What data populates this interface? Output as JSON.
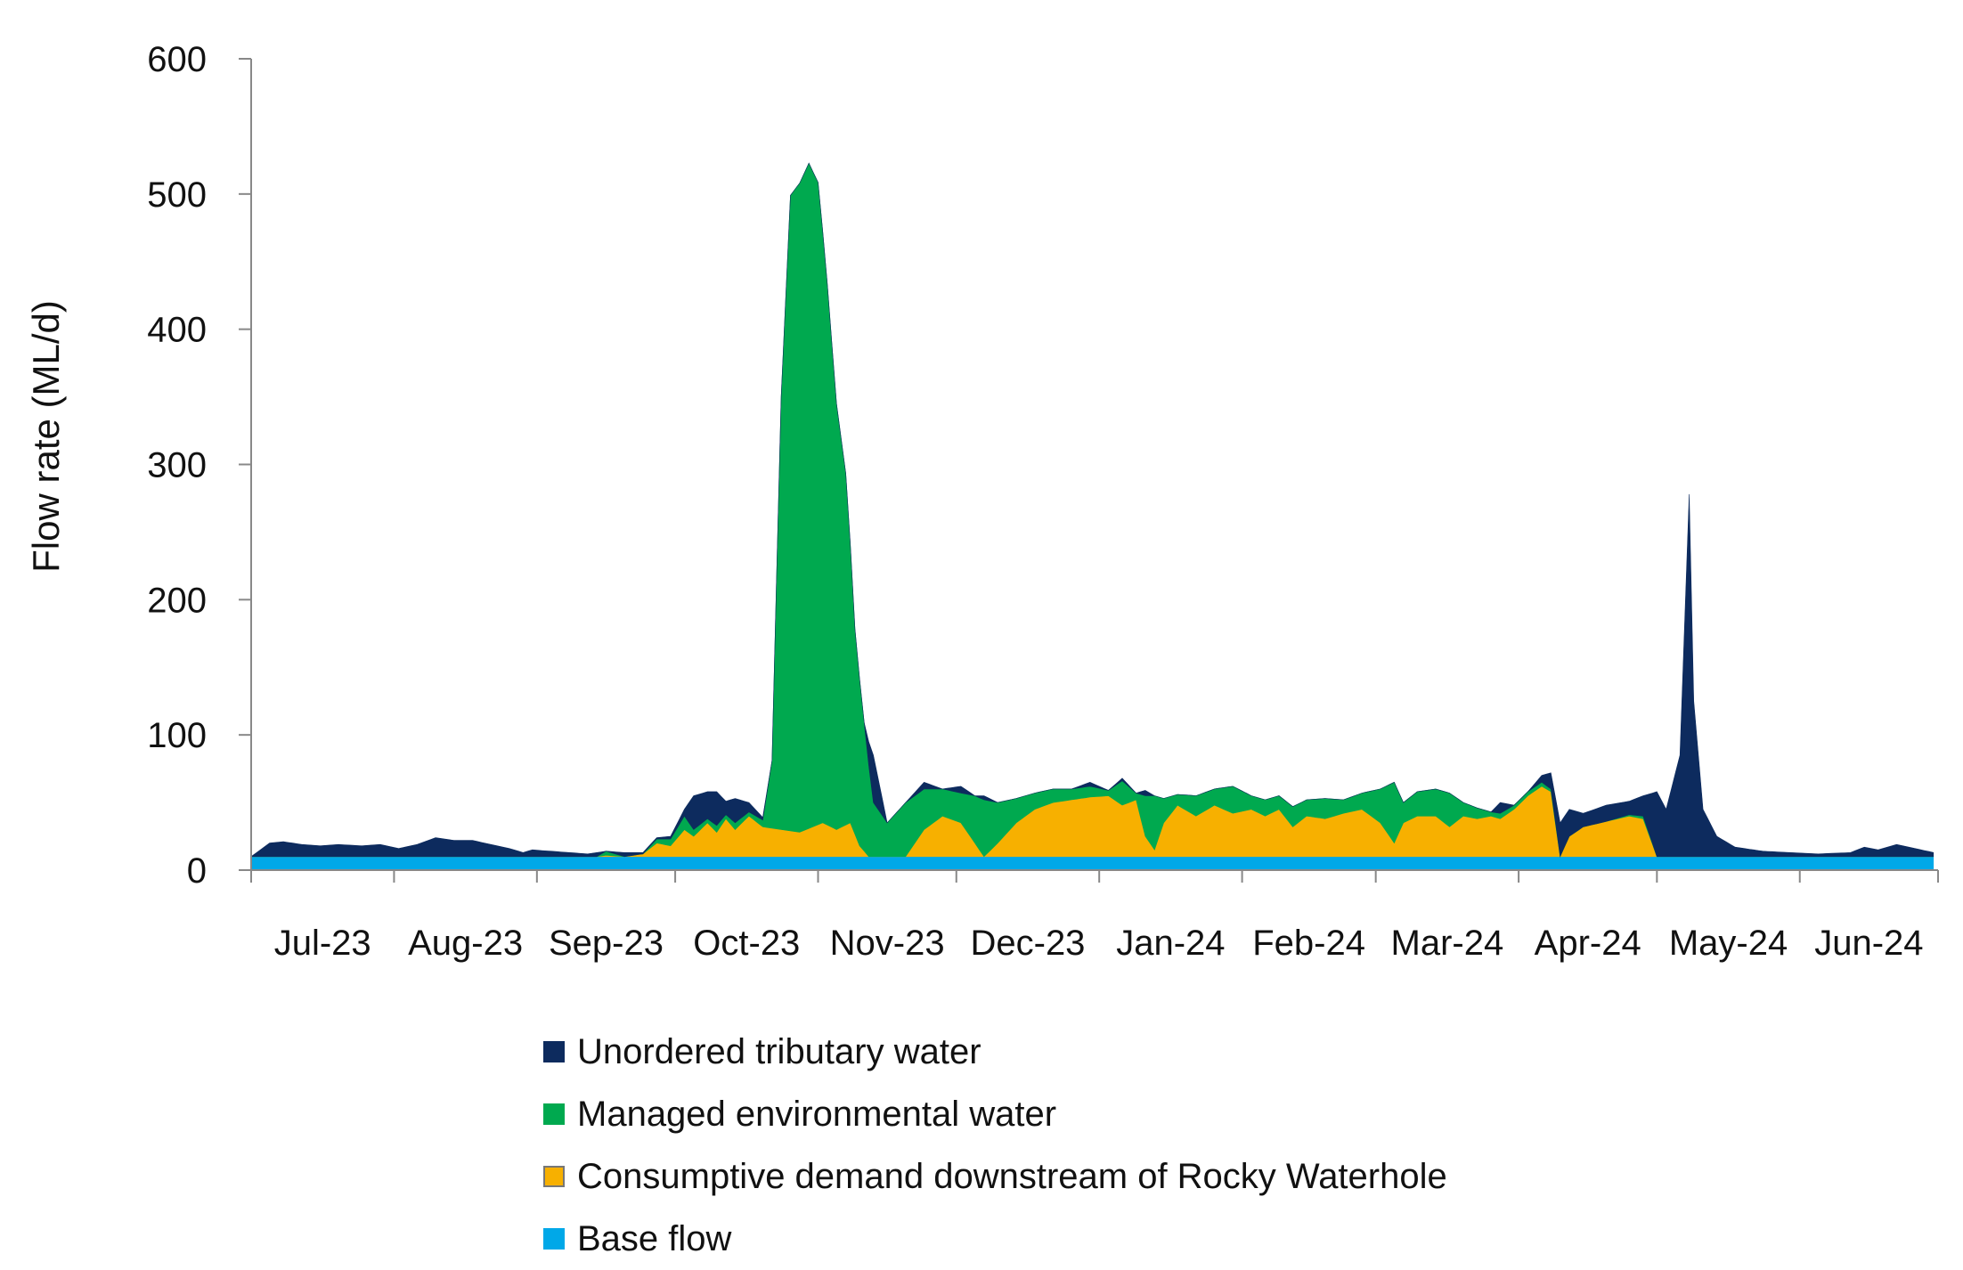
{
  "chart_data": {
    "type": "area",
    "stacked": true,
    "title": "",
    "ylabel": "Flow rate (ML/d)",
    "xlabel": "",
    "ylim": [
      0,
      600
    ],
    "yticks": [
      "0",
      "100",
      "200",
      "300",
      "400",
      "500",
      "600"
    ],
    "grid": false,
    "legend_position": "bottom",
    "x_start": "2023-07-01",
    "x_end": "2024-06-30",
    "x_tick_labels": [
      "Jul-23",
      "Aug-23",
      "Sep-23",
      "Oct-23",
      "Nov-23",
      "Dec-23",
      "Jan-24",
      "Feb-24",
      "Mar-24",
      "Apr-24",
      "May-24",
      "Jun-24"
    ],
    "series": [
      {
        "name": "Base flow",
        "color": "#00a8e8",
        "points": [
          [
            "2023-07-01",
            10
          ],
          [
            "2024-06-30",
            10
          ]
        ]
      },
      {
        "name": "Consumptive demand downstream of Rocky Waterhole",
        "color": "#f7b000",
        "points": [
          [
            "2023-07-01",
            0
          ],
          [
            "2023-08-31",
            0
          ],
          [
            "2023-09-14",
            0
          ],
          [
            "2023-09-16",
            1
          ],
          [
            "2023-09-20",
            0
          ],
          [
            "2023-09-24",
            2
          ],
          [
            "2023-09-27",
            10
          ],
          [
            "2023-09-30",
            8
          ],
          [
            "2023-10-03",
            20
          ],
          [
            "2023-10-05",
            15
          ],
          [
            "2023-10-08",
            25
          ],
          [
            "2023-10-10",
            18
          ],
          [
            "2023-10-12",
            28
          ],
          [
            "2023-10-14",
            20
          ],
          [
            "2023-10-17",
            30
          ],
          [
            "2023-10-20",
            22
          ],
          [
            "2023-10-24",
            20
          ],
          [
            "2023-10-28",
            18
          ],
          [
            "2023-11-02",
            25
          ],
          [
            "2023-11-05",
            20
          ],
          [
            "2023-11-08",
            25
          ],
          [
            "2023-11-10",
            8
          ],
          [
            "2023-11-12",
            0
          ],
          [
            "2023-11-20",
            0
          ],
          [
            "2023-11-24",
            20
          ],
          [
            "2023-11-28",
            30
          ],
          [
            "2023-12-02",
            25
          ],
          [
            "2023-12-05",
            10
          ],
          [
            "2023-12-07",
            0
          ],
          [
            "2023-12-10",
            10
          ],
          [
            "2023-12-14",
            25
          ],
          [
            "2023-12-18",
            35
          ],
          [
            "2023-12-22",
            40
          ],
          [
            "2023-12-26",
            42
          ],
          [
            "2023-12-30",
            44
          ],
          [
            "2024-01-03",
            45
          ],
          [
            "2024-01-06",
            38
          ],
          [
            "2024-01-09",
            42
          ],
          [
            "2024-01-11",
            15
          ],
          [
            "2024-01-13",
            5
          ],
          [
            "2024-01-15",
            25
          ],
          [
            "2024-01-18",
            38
          ],
          [
            "2024-01-22",
            30
          ],
          [
            "2024-01-26",
            38
          ],
          [
            "2024-01-30",
            32
          ],
          [
            "2024-02-03",
            35
          ],
          [
            "2024-02-06",
            30
          ],
          [
            "2024-02-09",
            35
          ],
          [
            "2024-02-12",
            22
          ],
          [
            "2024-02-15",
            30
          ],
          [
            "2024-02-19",
            28
          ],
          [
            "2024-02-23",
            32
          ],
          [
            "2024-02-27",
            35
          ],
          [
            "2024-03-02",
            25
          ],
          [
            "2024-03-05",
            10
          ],
          [
            "2024-03-07",
            25
          ],
          [
            "2024-03-10",
            30
          ],
          [
            "2024-03-14",
            30
          ],
          [
            "2024-03-17",
            22
          ],
          [
            "2024-03-20",
            30
          ],
          [
            "2024-03-23",
            28
          ],
          [
            "2024-03-26",
            30
          ],
          [
            "2024-03-28",
            28
          ],
          [
            "2024-03-31",
            35
          ],
          [
            "2024-04-03",
            45
          ],
          [
            "2024-04-06",
            52
          ],
          [
            "2024-04-08",
            48
          ],
          [
            "2024-04-10",
            0
          ],
          [
            "2024-04-12",
            15
          ],
          [
            "2024-04-15",
            22
          ],
          [
            "2024-04-20",
            26
          ],
          [
            "2024-04-25",
            30
          ],
          [
            "2024-04-28",
            28
          ],
          [
            "2024-05-01",
            0
          ],
          [
            "2024-06-30",
            0
          ]
        ]
      },
      {
        "name": "Managed environmental water",
        "color": "#00a94f",
        "points": [
          [
            "2023-07-01",
            0
          ],
          [
            "2023-08-31",
            0
          ],
          [
            "2023-09-14",
            0
          ],
          [
            "2023-09-16",
            3
          ],
          [
            "2023-09-20",
            0
          ],
          [
            "2023-09-24",
            0
          ],
          [
            "2023-09-27",
            3
          ],
          [
            "2023-09-30",
            5
          ],
          [
            "2023-10-03",
            10
          ],
          [
            "2023-10-05",
            5
          ],
          [
            "2023-10-08",
            3
          ],
          [
            "2023-10-10",
            5
          ],
          [
            "2023-10-12",
            3
          ],
          [
            "2023-10-14",
            5
          ],
          [
            "2023-10-17",
            3
          ],
          [
            "2023-10-20",
            5
          ],
          [
            "2023-10-22",
            50
          ],
          [
            "2023-10-24",
            320
          ],
          [
            "2023-10-26",
            470
          ],
          [
            "2023-10-28",
            480
          ],
          [
            "2023-10-30",
            492
          ],
          [
            "2023-11-01",
            475
          ],
          [
            "2023-11-03",
            400
          ],
          [
            "2023-11-05",
            315
          ],
          [
            "2023-11-07",
            260
          ],
          [
            "2023-11-09",
            152
          ],
          [
            "2023-11-11",
            95
          ],
          [
            "2023-11-13",
            40
          ],
          [
            "2023-11-16",
            25
          ],
          [
            "2023-11-20",
            40
          ],
          [
            "2023-11-24",
            30
          ],
          [
            "2023-11-28",
            20
          ],
          [
            "2023-12-02",
            22
          ],
          [
            "2023-12-05",
            35
          ],
          [
            "2023-12-07",
            42
          ],
          [
            "2023-12-10",
            30
          ],
          [
            "2023-12-14",
            18
          ],
          [
            "2023-12-18",
            12
          ],
          [
            "2023-12-22",
            10
          ],
          [
            "2023-12-26",
            8
          ],
          [
            "2023-12-30",
            8
          ],
          [
            "2024-01-03",
            4
          ],
          [
            "2024-01-06",
            18
          ],
          [
            "2024-01-09",
            5
          ],
          [
            "2024-01-11",
            30
          ],
          [
            "2024-01-13",
            40
          ],
          [
            "2024-01-15",
            18
          ],
          [
            "2024-01-18",
            8
          ],
          [
            "2024-01-22",
            15
          ],
          [
            "2024-01-26",
            12
          ],
          [
            "2024-01-30",
            20
          ],
          [
            "2024-02-03",
            10
          ],
          [
            "2024-02-06",
            12
          ],
          [
            "2024-02-09",
            10
          ],
          [
            "2024-02-12",
            15
          ],
          [
            "2024-02-15",
            12
          ],
          [
            "2024-02-19",
            15
          ],
          [
            "2024-02-23",
            10
          ],
          [
            "2024-02-27",
            12
          ],
          [
            "2024-03-02",
            25
          ],
          [
            "2024-03-05",
            45
          ],
          [
            "2024-03-07",
            15
          ],
          [
            "2024-03-10",
            18
          ],
          [
            "2024-03-14",
            20
          ],
          [
            "2024-03-17",
            25
          ],
          [
            "2024-03-20",
            10
          ],
          [
            "2024-03-23",
            8
          ],
          [
            "2024-03-26",
            3
          ],
          [
            "2024-03-28",
            4
          ],
          [
            "2024-03-31",
            3
          ],
          [
            "2024-04-03",
            3
          ],
          [
            "2024-04-06",
            3
          ],
          [
            "2024-04-08",
            2
          ],
          [
            "2024-04-10",
            0
          ],
          [
            "2024-04-12",
            0
          ],
          [
            "2024-04-15",
            0
          ],
          [
            "2024-04-20",
            0
          ],
          [
            "2024-04-25",
            1
          ],
          [
            "2024-04-28",
            2
          ],
          [
            "2024-05-01",
            0
          ],
          [
            "2024-06-30",
            0
          ]
        ]
      },
      {
        "name": "Unordered tributary water",
        "color": "#0d2b5e",
        "points": [
          [
            "2023-07-01",
            0
          ],
          [
            "2023-07-03",
            5
          ],
          [
            "2023-07-05",
            10
          ],
          [
            "2023-07-08",
            11
          ],
          [
            "2023-07-12",
            9
          ],
          [
            "2023-07-16",
            8
          ],
          [
            "2023-07-20",
            9
          ],
          [
            "2023-07-25",
            8
          ],
          [
            "2023-07-29",
            9
          ],
          [
            "2023-08-02",
            6
          ],
          [
            "2023-08-06",
            9
          ],
          [
            "2023-08-10",
            14
          ],
          [
            "2023-08-14",
            12
          ],
          [
            "2023-08-18",
            12
          ],
          [
            "2023-08-22",
            9
          ],
          [
            "2023-08-26",
            6
          ],
          [
            "2023-08-29",
            3
          ],
          [
            "2023-08-31",
            5
          ],
          [
            "2023-09-04",
            4
          ],
          [
            "2023-09-08",
            3
          ],
          [
            "2023-09-12",
            2
          ],
          [
            "2023-09-14",
            3
          ],
          [
            "2023-09-16",
            0
          ],
          [
            "2023-09-20",
            3
          ],
          [
            "2023-09-24",
            1
          ],
          [
            "2023-09-27",
            1
          ],
          [
            "2023-09-30",
            2
          ],
          [
            "2023-10-03",
            5
          ],
          [
            "2023-10-05",
            25
          ],
          [
            "2023-10-08",
            20
          ],
          [
            "2023-10-10",
            25
          ],
          [
            "2023-10-12",
            10
          ],
          [
            "2023-10-14",
            18
          ],
          [
            "2023-10-17",
            7
          ],
          [
            "2023-10-20",
            2
          ],
          [
            "2023-10-22",
            0
          ],
          [
            "2023-11-05",
            0
          ],
          [
            "2023-11-07",
            0
          ],
          [
            "2023-11-09",
            0
          ],
          [
            "2023-11-11",
            0
          ],
          [
            "2023-11-13",
            35
          ],
          [
            "2023-11-16",
            0
          ],
          [
            "2023-11-20",
            0
          ],
          [
            "2023-11-24",
            5
          ],
          [
            "2023-11-28",
            0
          ],
          [
            "2023-12-02",
            5
          ],
          [
            "2023-12-05",
            0
          ],
          [
            "2023-12-07",
            3
          ],
          [
            "2023-12-10",
            0
          ],
          [
            "2023-12-14",
            0
          ],
          [
            "2023-12-18",
            0
          ],
          [
            "2023-12-22",
            0
          ],
          [
            "2023-12-26",
            0
          ],
          [
            "2023-12-30",
            3
          ],
          [
            "2024-01-03",
            0
          ],
          [
            "2024-01-06",
            2
          ],
          [
            "2024-01-09",
            0
          ],
          [
            "2024-01-11",
            4
          ],
          [
            "2024-01-13",
            0
          ],
          [
            "2024-01-15",
            0
          ],
          [
            "2024-01-18",
            0
          ],
          [
            "2024-01-22",
            0
          ],
          [
            "2024-01-26",
            0
          ],
          [
            "2024-01-30",
            0
          ],
          [
            "2024-02-03",
            0
          ],
          [
            "2024-02-06",
            0
          ],
          [
            "2024-02-09",
            0
          ],
          [
            "2024-02-12",
            0
          ],
          [
            "2024-02-15",
            0
          ],
          [
            "2024-02-19",
            0
          ],
          [
            "2024-02-23",
            0
          ],
          [
            "2024-02-27",
            0
          ],
          [
            "2024-03-02",
            0
          ],
          [
            "2024-03-05",
            0
          ],
          [
            "2024-03-07",
            0
          ],
          [
            "2024-03-10",
            0
          ],
          [
            "2024-03-14",
            0
          ],
          [
            "2024-03-17",
            0
          ],
          [
            "2024-03-20",
            0
          ],
          [
            "2024-03-23",
            0
          ],
          [
            "2024-03-26",
            0
          ],
          [
            "2024-03-28",
            8
          ],
          [
            "2024-03-31",
            0
          ],
          [
            "2024-04-03",
            0
          ],
          [
            "2024-04-06",
            5
          ],
          [
            "2024-04-08",
            12
          ],
          [
            "2024-04-10",
            25
          ],
          [
            "2024-04-12",
            20
          ],
          [
            "2024-04-15",
            10
          ],
          [
            "2024-04-20",
            12
          ],
          [
            "2024-04-25",
            10
          ],
          [
            "2024-04-28",
            15
          ],
          [
            "2024-05-01",
            48
          ],
          [
            "2024-05-03",
            35
          ],
          [
            "2024-05-06",
            75
          ],
          [
            "2024-05-08",
            268
          ],
          [
            "2024-05-09",
            115
          ],
          [
            "2024-05-11",
            35
          ],
          [
            "2024-05-14",
            15
          ],
          [
            "2024-05-18",
            7
          ],
          [
            "2024-05-24",
            4
          ],
          [
            "2024-05-30",
            3
          ],
          [
            "2024-06-05",
            2
          ],
          [
            "2024-06-12",
            3
          ],
          [
            "2024-06-15",
            7
          ],
          [
            "2024-06-18",
            5
          ],
          [
            "2024-06-22",
            9
          ],
          [
            "2024-06-26",
            6
          ],
          [
            "2024-06-30",
            3
          ]
        ]
      }
    ]
  },
  "legend": {
    "items": [
      {
        "label": "Unordered tributary water",
        "color": "#0d2b5e"
      },
      {
        "label": "Managed environmental water",
        "color": "#00a94f"
      },
      {
        "label": "Consumptive demand downstream of Rocky Waterhole",
        "color": "#f7b000"
      },
      {
        "label": "Base flow",
        "color": "#00a8e8"
      }
    ]
  }
}
